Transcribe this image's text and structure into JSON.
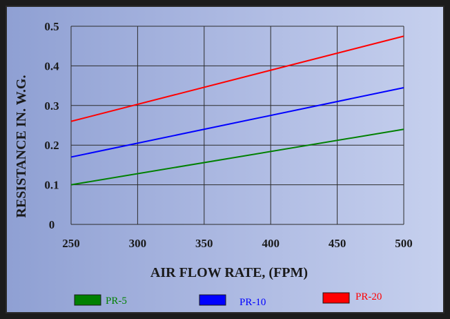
{
  "chart_data": {
    "type": "line",
    "title": "",
    "xlabel": "AIR FLOW RATE, (FPM)",
    "ylabel": "RESISTANCE IN. W.G.",
    "xlim": [
      250,
      500
    ],
    "ylim": [
      0,
      0.5
    ],
    "x_ticks": [
      250,
      300,
      350,
      400,
      450,
      500
    ],
    "x_tick_labels": [
      "250",
      "300",
      "350",
      "400",
      "450",
      "500"
    ],
    "y_ticks": [
      0,
      0.1,
      0.2,
      0.3,
      0.4,
      0.5
    ],
    "y_tick_labels": [
      "0",
      "0.1",
      "0.2",
      "0.3",
      "0.4",
      "0.5"
    ],
    "grid": true,
    "legend_position": "bottom",
    "x": [
      250,
      500
    ],
    "series": [
      {
        "name": "PR-5",
        "color": "#008000",
        "values": [
          0.1,
          0.24
        ]
      },
      {
        "name": "PR-10",
        "color": "#0000ff",
        "values": [
          0.17,
          0.345
        ]
      },
      {
        "name": "PR-20",
        "color": "#ff0000",
        "values": [
          0.26,
          0.475
        ]
      }
    ]
  }
}
